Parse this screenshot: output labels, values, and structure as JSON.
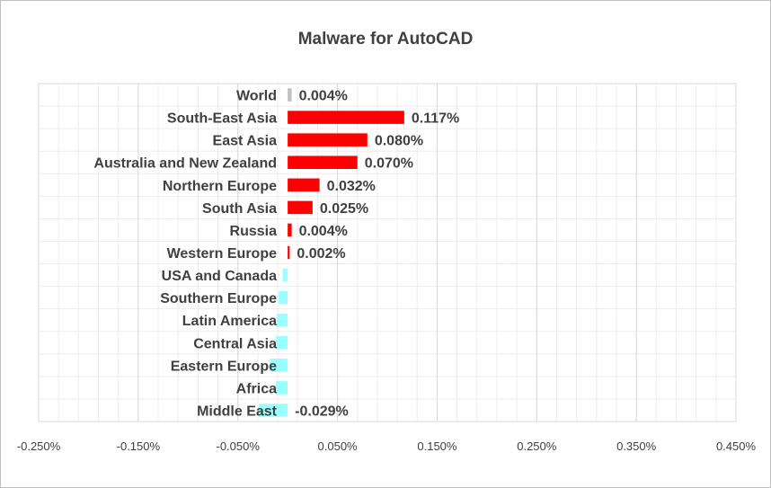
{
  "chart_data": {
    "type": "bar",
    "orientation": "horizontal",
    "title": "Malware for AutoCAD",
    "categories": [
      "World",
      "South-East Asia",
      "East Asia",
      "Australia and New Zealand",
      "Northern Europe",
      "South Asia",
      "Russia",
      "Western Europe",
      "USA and Canada",
      "Southern Europe",
      "Latin America",
      "Central Asia",
      "Eastern Europe",
      "Africa",
      "Middle East"
    ],
    "values": [
      0.004,
      0.117,
      0.08,
      0.07,
      0.032,
      0.025,
      0.004,
      0.002,
      -0.005,
      -0.009,
      -0.011,
      -0.012,
      -0.018,
      -0.012,
      -0.029
    ],
    "data_labels": [
      "0.004%",
      "0.117%",
      "0.080%",
      "0.070%",
      "0.032%",
      "0.025%",
      "0.004%",
      "0.002%",
      "",
      "",
      "",
      "",
      "",
      "",
      "-0.029%"
    ],
    "xlim": [
      -0.25,
      0.45
    ],
    "x_ticks": [
      -0.25,
      -0.15,
      -0.05,
      0.05,
      0.15,
      0.25,
      0.35,
      0.45
    ],
    "x_tick_labels": [
      "-0.250%",
      "-0.150%",
      "-0.050%",
      "0.050%",
      "0.150%",
      "0.250%",
      "0.350%",
      "0.450%"
    ],
    "grid": true,
    "minor_grid_step": 0.02,
    "colors": {
      "world": "#bfbfbf",
      "positive": "#ff0000",
      "negative": "#99ffff",
      "grid_major": "#d9d9d9",
      "grid_minor": "#ededed"
    }
  }
}
